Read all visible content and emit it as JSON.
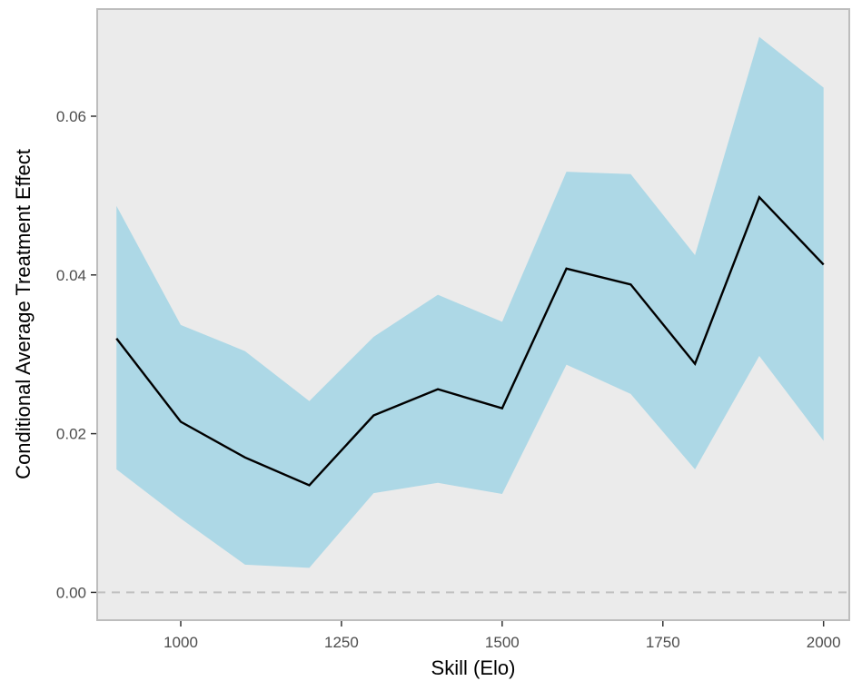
{
  "chart_data": {
    "type": "line",
    "xlabel": "Skill (Elo)",
    "ylabel": "Conditional Average Treatment Effect",
    "xlim": [
      870,
      2040
    ],
    "ylim": [
      -0.0035,
      0.0735
    ],
    "x_ticks": [
      1000,
      1250,
      1500,
      1750,
      2000
    ],
    "x_tick_labels": [
      "1000",
      "1250",
      "1500",
      "1750",
      "2000"
    ],
    "y_ticks": [
      0.0,
      0.02,
      0.04,
      0.06
    ],
    "y_tick_labels": [
      "0.00",
      "0.02",
      "0.04",
      "0.06"
    ],
    "reference_line": {
      "y": 0.0,
      "style": "dashed"
    },
    "grid": false,
    "x": [
      900,
      1000,
      1100,
      1200,
      1300,
      1400,
      1500,
      1600,
      1700,
      1800,
      1900,
      2000
    ],
    "series": [
      {
        "values": [
          0.032,
          0.0215,
          0.017,
          0.0135,
          0.0223,
          0.0256,
          0.0232,
          0.0408,
          0.0388,
          0.0288,
          0.0498,
          0.0413
        ]
      }
    ],
    "band": {
      "lower": [
        0.0155,
        0.0093,
        0.0035,
        0.0031,
        0.0125,
        0.0138,
        0.0124,
        0.0287,
        0.025,
        0.0155,
        0.0298,
        0.0191
      ],
      "upper": [
        0.0487,
        0.0337,
        0.0304,
        0.0241,
        0.0322,
        0.0375,
        0.0341,
        0.053,
        0.0527,
        0.0425,
        0.07,
        0.0636
      ]
    },
    "colors": {
      "panel": "#ebebeb",
      "band": "#add8e6",
      "line": "#000000",
      "reference": "#c0c0c0",
      "border": "#bdbdbd"
    }
  }
}
